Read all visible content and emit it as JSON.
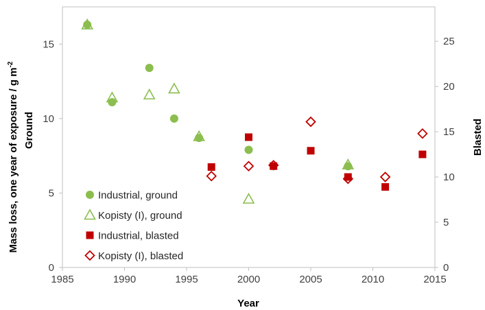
{
  "chart_data": {
    "type": "scatter",
    "xlabel": "Year",
    "ylabel_left_line1": "Mass loss, one year of exposure / g m",
    "ylabel_left_sup": "-2",
    "ylabel_left_line2": "Ground",
    "ylabel_right": "Blasted",
    "xlim": [
      1985,
      2015
    ],
    "ylim_left": [
      0,
      17.5
    ],
    "ylim_right": [
      0,
      28.8
    ],
    "x_ticks": [
      "1985",
      "1990",
      "1995",
      "2000",
      "2005",
      "2010",
      "2015"
    ],
    "y_left_ticks": [
      "0",
      "5",
      "10",
      "15"
    ],
    "y_right_ticks": [
      "0",
      "5",
      "10",
      "15",
      "20",
      "25"
    ],
    "grid": false,
    "legend_position": "bottom-left",
    "series": [
      {
        "name": "Industrial, ground",
        "axis": "left",
        "marker": "circle",
        "color": "#8BBE4E",
        "points": [
          [
            1987,
            16.3
          ],
          [
            1989,
            11.1
          ],
          [
            1992,
            13.4
          ],
          [
            1994,
            10.0
          ],
          [
            1996,
            8.7
          ],
          [
            2000,
            7.9
          ],
          [
            2008,
            6.8
          ]
        ]
      },
      {
        "name": "Kopisty (I), ground",
        "axis": "left",
        "marker": "triangle-open",
        "color": "#8BBE4E",
        "points": [
          [
            1987,
            16.3
          ],
          [
            1989,
            11.4
          ],
          [
            1992,
            11.6
          ],
          [
            1994,
            12.0
          ],
          [
            1996,
            8.8
          ],
          [
            2000,
            4.6
          ],
          [
            2008,
            6.9
          ]
        ]
      },
      {
        "name": "Industrial, blasted",
        "axis": "right",
        "marker": "square",
        "color": "#C00000",
        "points": [
          [
            1997,
            11.1
          ],
          [
            2000,
            14.4
          ],
          [
            2002,
            11.2
          ],
          [
            2005,
            12.9
          ],
          [
            2008,
            10.0
          ],
          [
            2011,
            8.9
          ],
          [
            2014,
            12.5
          ]
        ]
      },
      {
        "name": "Kopisty (I), blasted",
        "axis": "right",
        "marker": "diamond-open",
        "color": "#C00000",
        "points": [
          [
            1997,
            10.1
          ],
          [
            2000,
            11.2
          ],
          [
            2002,
            11.3
          ],
          [
            2005,
            16.1
          ],
          [
            2008,
            9.8
          ],
          [
            2011,
            10.0
          ],
          [
            2014,
            14.8
          ]
        ]
      }
    ]
  }
}
